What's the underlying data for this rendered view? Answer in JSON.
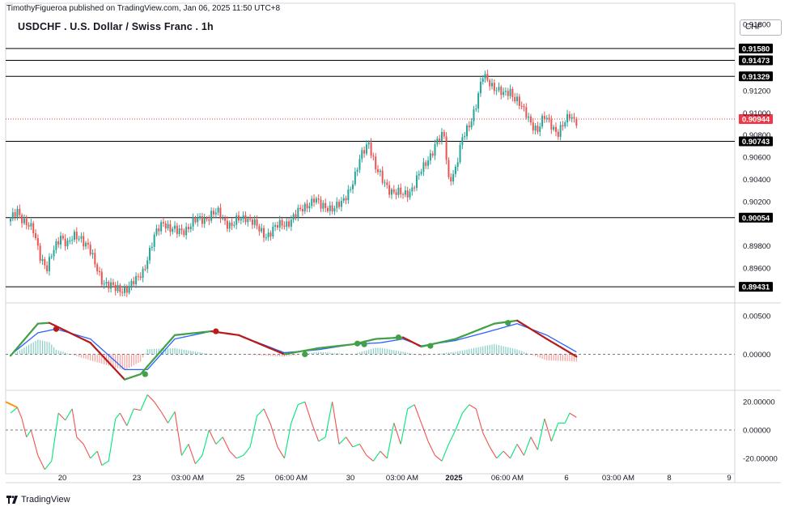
{
  "header": {
    "publisher": "TimothyFigueroa published on TradingView.com, Jan 06, 2025 11:50 UTC+8",
    "title": "USDCHF . U.S. Dollar / Swiss Franc . 1h",
    "currency": "CHF"
  },
  "footer": {
    "brand": "TradingView"
  },
  "colors": {
    "up": "#26a69a",
    "down": "#ef5350",
    "level_line": "#000000",
    "price_tag": "#f23645",
    "macd_fast": "#43a047",
    "macd_fast_down": "#b71c1c",
    "macd_signal": "#2962ff",
    "osc_up": "#00e676",
    "osc_down": "#ef5350",
    "osc_start": "#ff9800"
  },
  "chart_data": [
    {
      "type": "candlestick",
      "title": "USDCHF . U.S. Dollar / Swiss Franc . 1h",
      "y_axis_ticks": [
        "0.91800",
        "0.91200",
        "0.91000",
        "0.90800",
        "0.90600",
        "0.90400",
        "0.90200",
        "0.89800",
        "0.89600"
      ],
      "ylim": [
        0.893,
        0.9193
      ],
      "x_axis_ticks": [
        "20",
        "23",
        "03:00 AM",
        "25",
        "06:00 AM",
        "30",
        "03:00 AM",
        "2025",
        "06:00 AM",
        "6",
        "03:00 AM",
        "8",
        "9"
      ],
      "horizontal_levels": [
        0.9158,
        0.91473,
        0.91329,
        0.90743,
        0.90054,
        0.89431
      ],
      "level_labels": [
        "0.91580",
        "0.91473",
        "0.91329",
        "0.90743",
        "0.90054",
        "0.89431"
      ],
      "last_price": 0.90944,
      "last_price_label": "0.90944",
      "close_path": [
        [
          0,
          0.9002
        ],
        [
          3,
          0.9012
        ],
        [
          6,
          0.9003
        ],
        [
          10,
          0.8992
        ],
        [
          13,
          0.8972
        ],
        [
          16,
          0.896
        ],
        [
          19,
          0.8975
        ],
        [
          22,
          0.899
        ],
        [
          25,
          0.8982
        ],
        [
          28,
          0.8987
        ],
        [
          31,
          0.8988
        ],
        [
          34,
          0.898
        ],
        [
          37,
          0.8962
        ],
        [
          40,
          0.895
        ],
        [
          43,
          0.8945
        ],
        [
          46,
          0.894
        ],
        [
          49,
          0.8941
        ],
        [
          52,
          0.8943
        ],
        [
          55,
          0.8948
        ],
        [
          58,
          0.8958
        ],
        [
          61,
          0.8975
        ],
        [
          64,
          0.8992
        ],
        [
          67,
          0.9003
        ],
        [
          70,
          0.8995
        ],
        [
          73,
          0.8992
        ],
        [
          76,
          0.8995
        ],
        [
          79,
          0.8999
        ],
        [
          82,
          0.9003
        ],
        [
          85,
          0.9005
        ],
        [
          88,
          0.9008
        ],
        [
          91,
          0.9009
        ],
        [
          94,
          0.9003
        ],
        [
          97,
          0.8998
        ],
        [
          100,
          0.9003
        ],
        [
          103,
          0.9007
        ],
        [
          106,
          0.9002
        ],
        [
          109,
          0.8993
        ],
        [
          112,
          0.899
        ],
        [
          115,
          0.8995
        ],
        [
          118,
          0.8998
        ],
        [
          121,
          0.9001
        ],
        [
          124,
          0.9006
        ],
        [
          127,
          0.9011
        ],
        [
          130,
          0.9018
        ],
        [
          133,
          0.9022
        ],
        [
          136,
          0.9015
        ],
        [
          139,
          0.9016
        ],
        [
          142,
          0.9014
        ],
        [
          145,
          0.9017
        ],
        [
          148,
          0.903
        ],
        [
          151,
          0.9043
        ],
        [
          154,
          0.9062
        ],
        [
          157,
          0.9075
        ],
        [
          160,
          0.905
        ],
        [
          163,
          0.9038
        ],
        [
          166,
          0.9032
        ],
        [
          169,
          0.9028
        ],
        [
          172,
          0.9025
        ],
        [
          175,
          0.903
        ],
        [
          178,
          0.904
        ],
        [
          181,
          0.905
        ],
        [
          184,
          0.9063
        ],
        [
          187,
          0.9075
        ],
        [
          190,
          0.9078
        ],
        [
          192,
          0.904
        ],
        [
          195,
          0.905
        ],
        [
          198,
          0.9075
        ],
        [
          201,
          0.909
        ],
        [
          204,
          0.9108
        ],
        [
          207,
          0.9132
        ],
        [
          210,
          0.9128
        ],
        [
          213,
          0.9122
        ],
        [
          216,
          0.9115
        ],
        [
          219,
          0.912
        ],
        [
          222,
          0.9112
        ],
        [
          225,
          0.91
        ],
        [
          228,
          0.9092
        ],
        [
          231,
          0.9085
        ],
        [
          234,
          0.9095
        ],
        [
          237,
          0.909
        ],
        [
          240,
          0.9082
        ],
        [
          243,
          0.909
        ],
        [
          245,
          0.9098
        ],
        [
          248,
          0.9094
        ]
      ]
    },
    {
      "type": "line",
      "title": "",
      "y_axis_ticks": [
        "0.00500",
        "0.00000"
      ],
      "ylim": [
        -0.0045,
        0.0065
      ],
      "zero_line": 0,
      "series": [
        {
          "values": [
            [
              0,
              -0.0002
            ],
            [
              12,
              0.004
            ],
            [
              17,
              0.0041
            ],
            [
              35,
              0.0015
            ],
            [
              50,
              -0.0033
            ],
            [
              57,
              -0.0026
            ],
            [
              72,
              0.0025
            ],
            [
              88,
              0.003
            ],
            [
              100,
              0.0025
            ],
            [
              120,
              0.0
            ],
            [
              135,
              0.0008
            ],
            [
              150,
              0.0013
            ],
            [
              160,
              0.002
            ],
            [
              172,
              0.0022
            ],
            [
              180,
              0.001
            ],
            [
              195,
              0.002
            ],
            [
              212,
              0.004
            ],
            [
              222,
              0.0044
            ],
            [
              235,
              0.002
            ],
            [
              248,
              -0.0003
            ]
          ]
        },
        {
          "values": [
            [
              0,
              -0.0001
            ],
            [
              12,
              0.0028
            ],
            [
              20,
              0.0033
            ],
            [
              35,
              0.002
            ],
            [
              50,
              -0.002
            ],
            [
              60,
              -0.002
            ],
            [
              72,
              0.002
            ],
            [
              88,
              0.003
            ],
            [
              100,
              0.0025
            ],
            [
              120,
              0.0002
            ],
            [
              135,
              0.0006
            ],
            [
              150,
              0.0013
            ],
            [
              162,
              0.0015
            ],
            [
              172,
              0.002
            ],
            [
              180,
              0.0011
            ],
            [
              195,
              0.0018
            ],
            [
              210,
              0.003
            ],
            [
              222,
              0.004
            ],
            [
              235,
              0.0025
            ],
            [
              248,
              0.0003
            ]
          ]
        }
      ],
      "cross_points": [
        [
          20,
          0.0033
        ],
        [
          59,
          -0.0026
        ],
        [
          90,
          0.003
        ],
        [
          129,
          0.0
        ],
        [
          152,
          0.0014
        ],
        [
          155,
          0.0013
        ],
        [
          170,
          0.0022
        ],
        [
          184,
          0.0011
        ],
        [
          218,
          0.0041
        ]
      ]
    },
    {
      "type": "line",
      "title": "",
      "y_axis_ticks": [
        "20.00000",
        "0.00000",
        "-20.00000"
      ],
      "ylim": [
        -31,
        27
      ],
      "zero_line": 0,
      "values": [
        [
          0,
          12
        ],
        [
          3,
          16
        ],
        [
          5,
          8
        ],
        [
          7,
          -5
        ],
        [
          9,
          0
        ],
        [
          12,
          -18
        ],
        [
          15,
          -28
        ],
        [
          18,
          -22
        ],
        [
          21,
          12
        ],
        [
          24,
          7
        ],
        [
          27,
          15
        ],
        [
          29,
          -5
        ],
        [
          32,
          -10
        ],
        [
          35,
          -20
        ],
        [
          38,
          -15
        ],
        [
          40,
          -25
        ],
        [
          43,
          -22
        ],
        [
          46,
          8
        ],
        [
          48,
          12
        ],
        [
          51,
          3
        ],
        [
          54,
          15
        ],
        [
          57,
          14
        ],
        [
          60,
          25
        ],
        [
          63,
          20
        ],
        [
          66,
          13
        ],
        [
          69,
          5
        ],
        [
          72,
          13
        ],
        [
          75,
          -18
        ],
        [
          78,
          -10
        ],
        [
          81,
          -24
        ],
        [
          84,
          -18
        ],
        [
          87,
          0
        ],
        [
          90,
          -10
        ],
        [
          93,
          -5
        ],
        [
          96,
          -15
        ],
        [
          99,
          -20
        ],
        [
          102,
          -18
        ],
        [
          105,
          -12
        ],
        [
          108,
          10
        ],
        [
          111,
          15
        ],
        [
          114,
          4
        ],
        [
          117,
          -12
        ],
        [
          120,
          -20
        ],
        [
          123,
          5
        ],
        [
          126,
          18
        ],
        [
          129,
          20
        ],
        [
          132,
          5
        ],
        [
          135,
          -8
        ],
        [
          138,
          -5
        ],
        [
          141,
          20
        ],
        [
          144,
          -10
        ],
        [
          147,
          -5
        ],
        [
          150,
          -12
        ],
        [
          153,
          -10
        ],
        [
          156,
          -18
        ],
        [
          159,
          -22
        ],
        [
          162,
          -15
        ],
        [
          165,
          -20
        ],
        [
          168,
          5
        ],
        [
          171,
          -10
        ],
        [
          174,
          15
        ],
        [
          177,
          18
        ],
        [
          180,
          5
        ],
        [
          183,
          -8
        ],
        [
          186,
          -18
        ],
        [
          189,
          -22
        ],
        [
          192,
          -10
        ],
        [
          195,
          0
        ],
        [
          198,
          12
        ],
        [
          201,
          18
        ],
        [
          204,
          15
        ],
        [
          207,
          -2
        ],
        [
          210,
          -12
        ],
        [
          213,
          -20
        ],
        [
          216,
          -15
        ],
        [
          219,
          -20
        ],
        [
          222,
          -10
        ],
        [
          225,
          -18
        ],
        [
          228,
          -5
        ],
        [
          231,
          -14
        ],
        [
          234,
          8
        ],
        [
          237,
          -8
        ],
        [
          240,
          5
        ],
        [
          243,
          5
        ],
        [
          245,
          12
        ],
        [
          248,
          9
        ]
      ]
    }
  ]
}
